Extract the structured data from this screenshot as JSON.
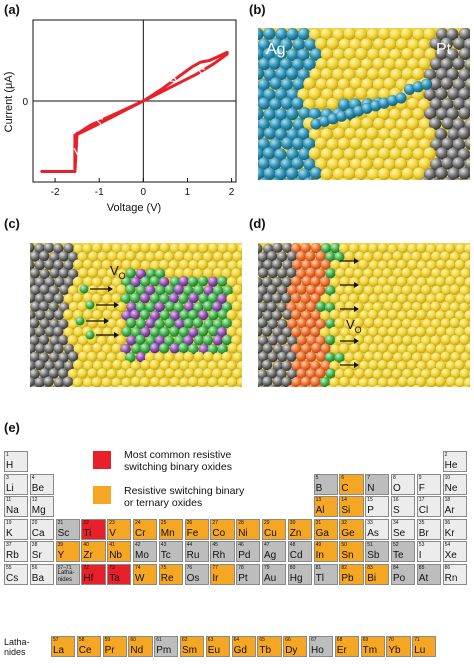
{
  "panels": {
    "a": "(a)",
    "b": "(b)",
    "c": "(c)",
    "d": "(d)",
    "e": "(e)"
  },
  "chart_data": {
    "type": "line",
    "xlabel": "Voltage (V)",
    "ylabel": "Current (μA)",
    "xlim": [
      -2.5,
      2.1
    ],
    "ylim": [
      -1.0,
      1.0
    ],
    "x_ticks": [
      -2,
      -1,
      0,
      1,
      2
    ],
    "y_ticks": [
      0
    ],
    "grid": false,
    "color": "#e8202a",
    "series": [
      {
        "x": [
          0,
          0.4,
          0.8,
          1.1,
          1.3,
          1.5,
          1.7,
          1.9,
          1.9,
          1.6,
          1.2,
          0.8,
          0.4,
          0,
          -0.5,
          -1.0,
          -1.3,
          -1.45,
          -1.55,
          -1.55,
          -1.7,
          -2.0,
          -2.3,
          -2.3,
          -2.0,
          -1.55,
          -1.5,
          -1.48,
          -1.2,
          -0.8,
          -0.4,
          0
        ],
        "y": [
          0,
          0.14,
          0.3,
          0.42,
          0.48,
          0.5,
          0.55,
          0.6,
          0.58,
          0.46,
          0.33,
          0.22,
          0.11,
          0,
          -0.14,
          -0.28,
          -0.36,
          -0.4,
          -0.42,
          -0.87,
          -0.87,
          -0.87,
          -0.87,
          -0.87,
          -0.87,
          -0.87,
          -0.4,
          -0.4,
          -0.3,
          -0.2,
          -0.1,
          0
        ]
      }
    ]
  },
  "illustrations": {
    "b_left_electrode": "Ag",
    "b_right_electrode": "Pt",
    "c_label": "V",
    "c_label_sub": "O",
    "d_label": "V",
    "d_label_sub": "O"
  },
  "legend": {
    "red_text_1": "Most common resistive",
    "red_text_2": "switching binary oxides",
    "orange_text_1": "Resistive switching binary",
    "orange_text_2": "or ternary oxides",
    "red_color": "#e8202a",
    "orange_color": "#f5a623"
  },
  "colors": {
    "red": "#e8202a",
    "orange": "#f5a623",
    "grey": "#bdbdbd",
    "light": "#ececec"
  },
  "periodic_table": {
    "lath_label": "Lathanides",
    "lath_row_label_1": "Latha-",
    "lath_row_label_2": "nides",
    "elements": [
      {
        "n": "1",
        "s": "H",
        "r": 0,
        "c": 0,
        "k": "light"
      },
      {
        "n": "2",
        "s": "He",
        "r": 0,
        "c": 17,
        "k": "light"
      },
      {
        "n": "3",
        "s": "Li",
        "r": 1,
        "c": 0,
        "k": "light"
      },
      {
        "n": "4",
        "s": "Be",
        "r": 1,
        "c": 1,
        "k": "light"
      },
      {
        "n": "5",
        "s": "B",
        "r": 1,
        "c": 12,
        "k": "grey"
      },
      {
        "n": "6",
        "s": "C",
        "r": 1,
        "c": 13,
        "k": "orange"
      },
      {
        "n": "7",
        "s": "N",
        "r": 1,
        "c": 14,
        "k": "grey"
      },
      {
        "n": "8",
        "s": "O",
        "r": 1,
        "c": 15,
        "k": "light"
      },
      {
        "n": "9",
        "s": "F",
        "r": 1,
        "c": 16,
        "k": "light"
      },
      {
        "n": "10",
        "s": "Ne",
        "r": 1,
        "c": 17,
        "k": "light"
      },
      {
        "n": "11",
        "s": "Na",
        "r": 2,
        "c": 0,
        "k": "light"
      },
      {
        "n": "12",
        "s": "Mg",
        "r": 2,
        "c": 1,
        "k": "light"
      },
      {
        "n": "13",
        "s": "Al",
        "r": 2,
        "c": 12,
        "k": "orange"
      },
      {
        "n": "14",
        "s": "Si",
        "r": 2,
        "c": 13,
        "k": "orange"
      },
      {
        "n": "15",
        "s": "P",
        "r": 2,
        "c": 14,
        "k": "light"
      },
      {
        "n": "16",
        "s": "S",
        "r": 2,
        "c": 15,
        "k": "light"
      },
      {
        "n": "17",
        "s": "Cl",
        "r": 2,
        "c": 16,
        "k": "light"
      },
      {
        "n": "18",
        "s": "Ar",
        "r": 2,
        "c": 17,
        "k": "light"
      },
      {
        "n": "19",
        "s": "K",
        "r": 3,
        "c": 0,
        "k": "light"
      },
      {
        "n": "20",
        "s": "Ca",
        "r": 3,
        "c": 1,
        "k": "light"
      },
      {
        "n": "21",
        "s": "Sc",
        "r": 3,
        "c": 2,
        "k": "grey"
      },
      {
        "n": "22",
        "s": "Ti",
        "r": 3,
        "c": 3,
        "k": "red"
      },
      {
        "n": "23",
        "s": "V",
        "r": 3,
        "c": 4,
        "k": "orange"
      },
      {
        "n": "24",
        "s": "Cr",
        "r": 3,
        "c": 5,
        "k": "orange"
      },
      {
        "n": "25",
        "s": "Mn",
        "r": 3,
        "c": 6,
        "k": "orange"
      },
      {
        "n": "26",
        "s": "Fe",
        "r": 3,
        "c": 7,
        "k": "orange"
      },
      {
        "n": "27",
        "s": "Co",
        "r": 3,
        "c": 8,
        "k": "orange"
      },
      {
        "n": "28",
        "s": "Ni",
        "r": 3,
        "c": 9,
        "k": "orange"
      },
      {
        "n": "29",
        "s": "Cu",
        "r": 3,
        "c": 10,
        "k": "orange"
      },
      {
        "n": "30",
        "s": "Zn",
        "r": 3,
        "c": 11,
        "k": "orange"
      },
      {
        "n": "31",
        "s": "Ga",
        "r": 3,
        "c": 12,
        "k": "orange"
      },
      {
        "n": "32",
        "s": "Ge",
        "r": 3,
        "c": 13,
        "k": "orange"
      },
      {
        "n": "33",
        "s": "As",
        "r": 3,
        "c": 14,
        "k": "light"
      },
      {
        "n": "34",
        "s": "Se",
        "r": 3,
        "c": 15,
        "k": "light"
      },
      {
        "n": "35",
        "s": "Br",
        "r": 3,
        "c": 16,
        "k": "light"
      },
      {
        "n": "36",
        "s": "Kr",
        "r": 3,
        "c": 17,
        "k": "light"
      },
      {
        "n": "37",
        "s": "Rb",
        "r": 4,
        "c": 0,
        "k": "light"
      },
      {
        "n": "38",
        "s": "Sr",
        "r": 4,
        "c": 1,
        "k": "light"
      },
      {
        "n": "39",
        "s": "Y",
        "r": 4,
        "c": 2,
        "k": "orange"
      },
      {
        "n": "40",
        "s": "Zr",
        "r": 4,
        "c": 3,
        "k": "orange"
      },
      {
        "n": "41",
        "s": "Nb",
        "r": 4,
        "c": 4,
        "k": "orange"
      },
      {
        "n": "42",
        "s": "Mo",
        "r": 4,
        "c": 5,
        "k": "grey"
      },
      {
        "n": "43",
        "s": "Tc",
        "r": 4,
        "c": 6,
        "k": "grey"
      },
      {
        "n": "44",
        "s": "Ru",
        "r": 4,
        "c": 7,
        "k": "grey"
      },
      {
        "n": "45",
        "s": "Rh",
        "r": 4,
        "c": 8,
        "k": "grey"
      },
      {
        "n": "46",
        "s": "Pd",
        "r": 4,
        "c": 9,
        "k": "grey"
      },
      {
        "n": "47",
        "s": "Ag",
        "r": 4,
        "c": 10,
        "k": "grey"
      },
      {
        "n": "48",
        "s": "Cd",
        "r": 4,
        "c": 11,
        "k": "grey"
      },
      {
        "n": "49",
        "s": "In",
        "r": 4,
        "c": 12,
        "k": "orange"
      },
      {
        "n": "50",
        "s": "Sn",
        "r": 4,
        "c": 13,
        "k": "orange"
      },
      {
        "n": "51",
        "s": "Sb",
        "r": 4,
        "c": 14,
        "k": "grey"
      },
      {
        "n": "52",
        "s": "Te",
        "r": 4,
        "c": 15,
        "k": "grey"
      },
      {
        "n": "53",
        "s": "I",
        "r": 4,
        "c": 16,
        "k": "light"
      },
      {
        "n": "54",
        "s": "Xe",
        "r": 4,
        "c": 17,
        "k": "light"
      },
      {
        "n": "55",
        "s": "Cs",
        "r": 5,
        "c": 0,
        "k": "light"
      },
      {
        "n": "56",
        "s": "Ba",
        "r": 5,
        "c": 1,
        "k": "light"
      },
      {
        "n": "57–71",
        "s": "Latha-nides",
        "r": 5,
        "c": 2,
        "k": "grey",
        "small": true
      },
      {
        "n": "72",
        "s": "Hf",
        "r": 5,
        "c": 3,
        "k": "red"
      },
      {
        "n": "73",
        "s": "Ta",
        "r": 5,
        "c": 4,
        "k": "red"
      },
      {
        "n": "74",
        "s": "W",
        "r": 5,
        "c": 5,
        "k": "orange"
      },
      {
        "n": "75",
        "s": "Re",
        "r": 5,
        "c": 6,
        "k": "orange"
      },
      {
        "n": "76",
        "s": "Os",
        "r": 5,
        "c": 7,
        "k": "grey"
      },
      {
        "n": "77",
        "s": "Ir",
        "r": 5,
        "c": 8,
        "k": "orange"
      },
      {
        "n": "78",
        "s": "Pt",
        "r": 5,
        "c": 9,
        "k": "grey"
      },
      {
        "n": "79",
        "s": "Au",
        "r": 5,
        "c": 10,
        "k": "grey"
      },
      {
        "n": "80",
        "s": "Hg",
        "r": 5,
        "c": 11,
        "k": "grey"
      },
      {
        "n": "81",
        "s": "Tl",
        "r": 5,
        "c": 12,
        "k": "grey"
      },
      {
        "n": "82",
        "s": "Pb",
        "r": 5,
        "c": 13,
        "k": "orange"
      },
      {
        "n": "83",
        "s": "Bi",
        "r": 5,
        "c": 14,
        "k": "orange"
      },
      {
        "n": "84",
        "s": "Po",
        "r": 5,
        "c": 15,
        "k": "grey"
      },
      {
        "n": "85",
        "s": "At",
        "r": 5,
        "c": 16,
        "k": "grey"
      },
      {
        "n": "86",
        "s": "Rn",
        "r": 5,
        "c": 17,
        "k": "light"
      }
    ],
    "lanthanides": [
      {
        "n": "57",
        "s": "La",
        "k": "orange"
      },
      {
        "n": "58",
        "s": "Ce",
        "k": "orange"
      },
      {
        "n": "59",
        "s": "Pr",
        "k": "orange"
      },
      {
        "n": "60",
        "s": "Nd",
        "k": "orange"
      },
      {
        "n": "61",
        "s": "Pm",
        "k": "grey"
      },
      {
        "n": "62",
        "s": "Sm",
        "k": "orange"
      },
      {
        "n": "63",
        "s": "Eu",
        "k": "orange"
      },
      {
        "n": "64",
        "s": "Gd",
        "k": "orange"
      },
      {
        "n": "65",
        "s": "Tb",
        "k": "orange"
      },
      {
        "n": "66",
        "s": "Dy",
        "k": "orange"
      },
      {
        "n": "67",
        "s": "Ho",
        "k": "grey"
      },
      {
        "n": "68",
        "s": "Er",
        "k": "orange"
      },
      {
        "n": "69",
        "s": "Tm",
        "k": "orange"
      },
      {
        "n": "70",
        "s": "Yb",
        "k": "orange"
      },
      {
        "n": "71",
        "s": "Lu",
        "k": "orange"
      }
    ]
  }
}
